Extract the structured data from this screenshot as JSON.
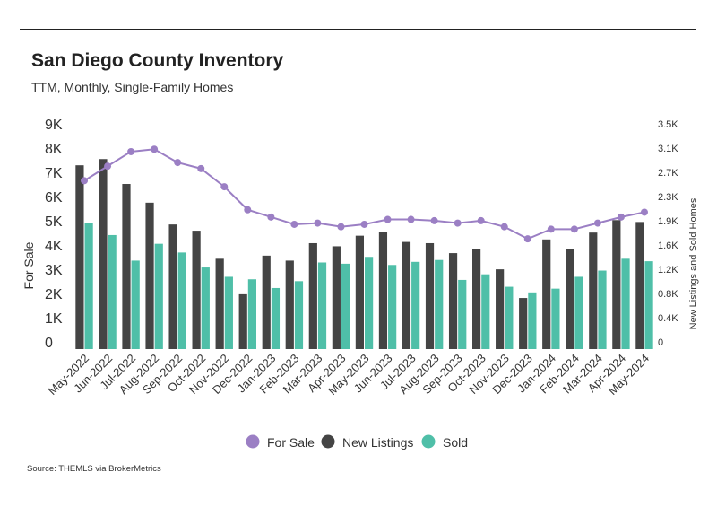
{
  "header": {
    "title": "San Diego County Inventory",
    "subtitle": "TTM, Monthly, Single-Family Homes"
  },
  "footer": {
    "source": "Source:  THEMLS via BrokerMetrics"
  },
  "colors": {
    "for_sale": "#9b7fc4",
    "new_listings": "#444444",
    "sold": "#4fbfa8"
  },
  "chart_data": {
    "type": "bar",
    "categories": [
      "May-2022",
      "Jun-2022",
      "Jul-2022",
      "Aug-2022",
      "Sep-2022",
      "Oct-2022",
      "Nov-2022",
      "Dec-2022",
      "Jan-2023",
      "Feb-2023",
      "Mar-2023",
      "Apr-2023",
      "May-2023",
      "Jun-2023",
      "Jul-2023",
      "Aug-2023",
      "Sep-2023",
      "Oct-2023",
      "Nov-2023",
      "Dec-2023",
      "Jan-2024",
      "Feb-2024",
      "Mar-2024",
      "Apr-2024",
      "May-2024"
    ],
    "series": [
      {
        "name": "For Sale",
        "type": "line",
        "axis": "left",
        "values": [
          6950,
          7550,
          8150,
          8250,
          7700,
          7450,
          6700,
          5750,
          5450,
          5150,
          5200,
          5050,
          5150,
          5350,
          5350,
          5300,
          5200,
          5300,
          5050,
          4550,
          4950,
          4950,
          5200,
          5450,
          5650
        ]
      },
      {
        "name": "New Listings",
        "type": "bar",
        "axis": "right",
        "values": [
          2950,
          3050,
          2650,
          2350,
          2000,
          1900,
          1450,
          880,
          1500,
          1420,
          1700,
          1650,
          1820,
          1880,
          1720,
          1700,
          1540,
          1600,
          1280,
          820,
          1760,
          1600,
          1870,
          2070,
          2040
        ]
      },
      {
        "name": "Sold",
        "type": "bar",
        "axis": "right",
        "values": [
          2020,
          1830,
          1420,
          1690,
          1550,
          1310,
          1160,
          1120,
          980,
          1090,
          1390,
          1370,
          1480,
          1350,
          1400,
          1430,
          1110,
          1200,
          1000,
          910,
          970,
          1160,
          1260,
          1450,
          1410
        ]
      }
    ],
    "y_left": {
      "label": "For Sale",
      "ticks": [
        "0",
        "1K",
        "2K",
        "3K",
        "4K",
        "5K",
        "6K",
        "7K",
        "8K",
        "9K"
      ],
      "ylim": [
        0,
        9000
      ]
    },
    "y_right": {
      "label": "New Listings and Sold Homes",
      "ticks": [
        "0",
        "0.4K",
        "0.8K",
        "1.2K",
        "1.6K",
        "1.9K",
        "2.3K",
        "2.7K",
        "3.1K",
        "3.5K"
      ],
      "ylim": [
        0,
        3500
      ]
    },
    "legend": {
      "position": "bottom-center",
      "items": [
        "For Sale",
        "New Listings",
        "Sold"
      ]
    },
    "grid": false
  }
}
